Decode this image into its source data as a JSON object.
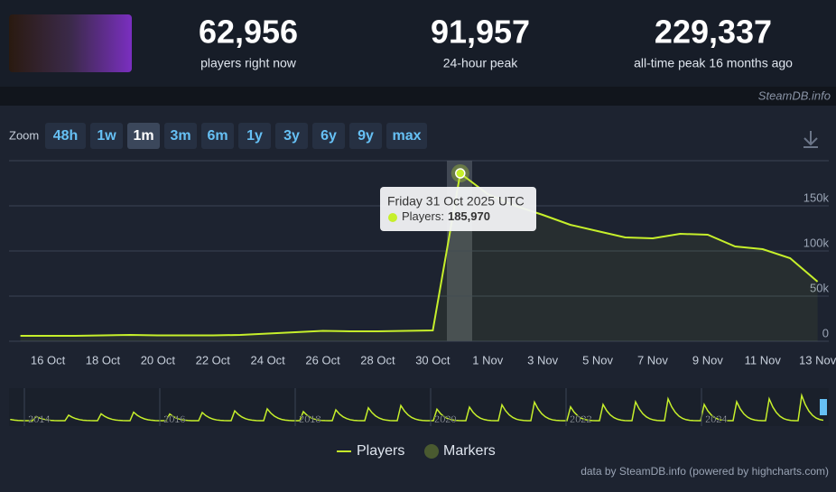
{
  "stats": [
    {
      "value": "62,956",
      "label": "players right now"
    },
    {
      "value": "91,957",
      "label": "24-hour peak"
    },
    {
      "value": "229,337",
      "label": "all-time peak 16 months ago"
    }
  ],
  "watermark": "SteamDB.info",
  "zoom": {
    "label": "Zoom",
    "buttons": [
      "48h",
      "1w",
      "1m",
      "3m",
      "6m",
      "1y",
      "3y",
      "6y",
      "9y",
      "max"
    ],
    "active": 2
  },
  "chart_data": {
    "type": "line",
    "categories": [
      null,
      "16 Oct",
      null,
      "18 Oct",
      null,
      "20 Oct",
      null,
      "22 Oct",
      null,
      "24 Oct",
      null,
      "26 Oct",
      null,
      "28 Oct",
      null,
      "30 Oct",
      null,
      "1 Nov",
      null,
      "3 Nov",
      null,
      "5 Nov",
      null,
      "7 Nov",
      null,
      "9 Nov",
      null,
      "11 Nov",
      null,
      "13 Nov"
    ],
    "series": [
      {
        "name": "Players",
        "color": "#c6ef2b",
        "values": [
          6000,
          6000,
          6000,
          6500,
          7000,
          6500,
          6500,
          6500,
          7000,
          8500,
          10000,
          11500,
          11000,
          11000,
          11500,
          12000,
          185970,
          163000,
          150000,
          140000,
          129000,
          122000,
          115000,
          114000,
          119000,
          118000,
          105000,
          102000,
          92000,
          66000
        ]
      }
    ],
    "ylim": [
      0,
      200000
    ],
    "yticks": [
      {
        "value": 0,
        "label": "0"
      },
      {
        "value": 50000,
        "label": "50k"
      },
      {
        "value": 100000,
        "label": "100k"
      },
      {
        "value": 150000,
        "label": "150k"
      }
    ],
    "grid": true,
    "tooltip": {
      "index": 16,
      "title": "Friday 31 Oct 2025 UTC",
      "label": "Players:",
      "value": "185,970"
    },
    "markers_legend": "Markers",
    "navigator_labels": [
      "2014",
      "2016",
      "2018",
      "2020",
      "2022",
      "2024"
    ]
  },
  "credit": "data by SteamDB.info (powered by highcharts.com)"
}
